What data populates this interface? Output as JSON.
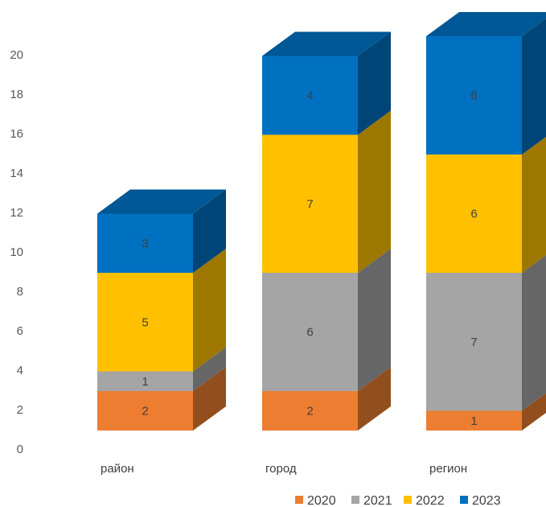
{
  "chart_data": {
    "type": "bar",
    "stacked": true,
    "style": "3d-column",
    "categories": [
      "район",
      "город",
      "регион"
    ],
    "series": [
      {
        "name": "2020",
        "values": [
          2,
          2,
          1
        ],
        "color": "#ED7D31"
      },
      {
        "name": "2021",
        "values": [
          1,
          6,
          7
        ],
        "color": "#A5A5A5"
      },
      {
        "name": "2022",
        "values": [
          5,
          7,
          6
        ],
        "color": "#FFC000"
      },
      {
        "name": "2023",
        "values": [
          3,
          4,
          6
        ],
        "color": "#0070C0"
      }
    ],
    "y_ticks": [
      "0",
      "2",
      "4",
      "6",
      "8",
      "10",
      "12",
      "14",
      "16",
      "18",
      "20"
    ],
    "ylim": [
      0,
      20
    ],
    "grid": false,
    "legend_position": "bottom-right"
  }
}
